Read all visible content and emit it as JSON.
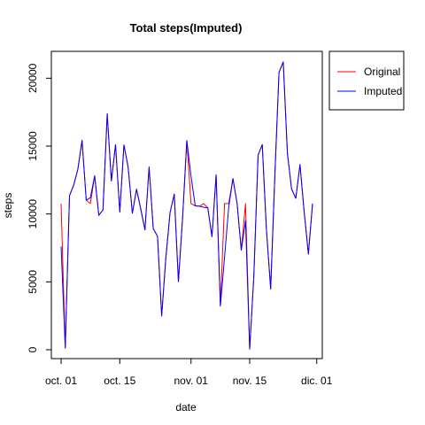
{
  "chart_data": {
    "type": "line",
    "title": "Total steps(Imputed)",
    "xlabel": "date",
    "ylabel": "steps",
    "xlim": [
      "2012-10-01",
      "2012-11-30"
    ],
    "ylim": [
      0,
      22000
    ],
    "x_ticks": [
      {
        "date": "2012-10-01",
        "label": "oct. 01"
      },
      {
        "date": "2012-10-15",
        "label": "oct. 15"
      },
      {
        "date": "2012-11-01",
        "label": "nov. 01"
      },
      {
        "date": "2012-11-15",
        "label": "nov. 15"
      },
      {
        "date": "2012-12-01",
        "label": "dic. 01"
      }
    ],
    "y_ticks": [
      0,
      5000,
      10000,
      15000,
      20000
    ],
    "grid": false,
    "legend_position": "outside-top-right",
    "series": [
      {
        "name": "Original",
        "color": "#ff0000",
        "x": [
          "2012-10-01",
          "2012-10-02",
          "2012-10-03",
          "2012-10-04",
          "2012-10-05",
          "2012-10-06",
          "2012-10-07",
          "2012-10-08",
          "2012-10-09",
          "2012-10-10",
          "2012-10-11",
          "2012-10-12",
          "2012-10-13",
          "2012-10-14",
          "2012-10-15",
          "2012-10-16",
          "2012-10-17",
          "2012-10-18",
          "2012-10-19",
          "2012-10-20",
          "2012-10-21",
          "2012-10-22",
          "2012-10-23",
          "2012-10-24",
          "2012-10-25",
          "2012-10-26",
          "2012-10-27",
          "2012-10-28",
          "2012-10-29",
          "2012-10-30",
          "2012-10-31",
          "2012-11-01",
          "2012-11-02",
          "2012-11-03",
          "2012-11-04",
          "2012-11-05",
          "2012-11-06",
          "2012-11-07",
          "2012-11-08",
          "2012-11-09",
          "2012-11-10",
          "2012-11-11",
          "2012-11-12",
          "2012-11-13",
          "2012-11-14",
          "2012-11-15",
          "2012-11-16",
          "2012-11-17",
          "2012-11-18",
          "2012-11-19",
          "2012-11-20",
          "2012-11-21",
          "2012-11-22",
          "2012-11-23",
          "2012-11-24",
          "2012-11-25",
          "2012-11-26",
          "2012-11-27",
          "2012-11-28",
          "2012-11-29",
          "2012-11-30"
        ],
        "y": [
          10766,
          126,
          11352,
          12116,
          13294,
          15420,
          11015,
          10766,
          12811,
          9900,
          10304,
          17382,
          12426,
          15098,
          10139,
          15084,
          13452,
          10056,
          11829,
          10395,
          8821,
          13460,
          8918,
          8355,
          2492,
          6778,
          10119,
          11458,
          5018,
          9819,
          15414,
          10766,
          10600,
          10571,
          10766,
          10439,
          8334,
          12883,
          3219,
          10766,
          10766,
          12608,
          10765,
          7336,
          10766,
          41,
          5441,
          14339,
          15110,
          8841,
          4472,
          12787,
          20427,
          21194,
          14478,
          11834,
          11162,
          13646,
          10183,
          7047,
          10766
        ]
      },
      {
        "name": "Imputed",
        "color": "#0000ff",
        "x": [
          "2012-10-01",
          "2012-10-02",
          "2012-10-03",
          "2012-10-04",
          "2012-10-05",
          "2012-10-06",
          "2012-10-07",
          "2012-10-08",
          "2012-10-09",
          "2012-10-10",
          "2012-10-11",
          "2012-10-12",
          "2012-10-13",
          "2012-10-14",
          "2012-10-15",
          "2012-10-16",
          "2012-10-17",
          "2012-10-18",
          "2012-10-19",
          "2012-10-20",
          "2012-10-21",
          "2012-10-22",
          "2012-10-23",
          "2012-10-24",
          "2012-10-25",
          "2012-10-26",
          "2012-10-27",
          "2012-10-28",
          "2012-10-29",
          "2012-10-30",
          "2012-10-31",
          "2012-11-01",
          "2012-11-02",
          "2012-11-03",
          "2012-11-04",
          "2012-11-05",
          "2012-11-06",
          "2012-11-07",
          "2012-11-08",
          "2012-11-09",
          "2012-11-10",
          "2012-11-11",
          "2012-11-12",
          "2012-11-13",
          "2012-11-14",
          "2012-11-15",
          "2012-11-16",
          "2012-11-17",
          "2012-11-18",
          "2012-11-19",
          "2012-11-20",
          "2012-11-21",
          "2012-11-22",
          "2012-11-23",
          "2012-11-24",
          "2012-11-25",
          "2012-11-26",
          "2012-11-27",
          "2012-11-28",
          "2012-11-29",
          "2012-11-30"
        ],
        "y": [
          7600,
          126,
          11352,
          12116,
          13294,
          15420,
          11015,
          11200,
          12811,
          9900,
          10304,
          17382,
          12426,
          15098,
          10139,
          15084,
          13452,
          10056,
          11829,
          10395,
          8821,
          13460,
          8918,
          8355,
          2492,
          6778,
          10119,
          11458,
          5018,
          9819,
          15414,
          12800,
          10600,
          10571,
          10500,
          10439,
          8334,
          12883,
          3219,
          6800,
          10500,
          12608,
          10765,
          7336,
          9500,
          41,
          5441,
          14339,
          15110,
          8841,
          4472,
          12787,
          20427,
          21194,
          14478,
          11834,
          11162,
          13646,
          10183,
          7047,
          10766
        ]
      }
    ]
  }
}
